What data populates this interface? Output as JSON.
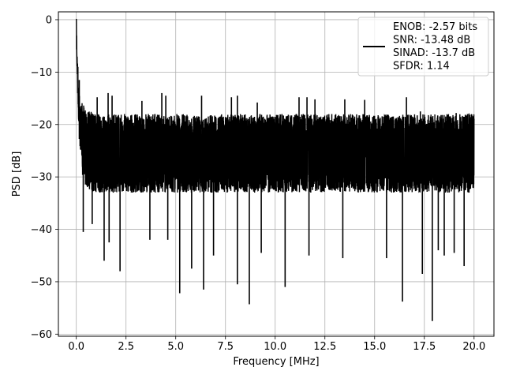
{
  "chart_data": {
    "type": "line",
    "title": "",
    "xlabel": "Frequency [MHz]",
    "ylabel": "PSD [dB]",
    "xlim": [
      -0.9,
      21.0
    ],
    "ylim": [
      -60.4,
      1.5
    ],
    "xticks": [
      0.0,
      2.5,
      5.0,
      7.5,
      10.0,
      12.5,
      15.0,
      17.5,
      20.0
    ],
    "xtick_labels": [
      "0.0",
      "2.5",
      "5.0",
      "7.5",
      "10.0",
      "12.5",
      "15.0",
      "17.5",
      "20.0"
    ],
    "yticks": [
      0,
      -10,
      -20,
      -30,
      -40,
      -50,
      -60
    ],
    "ytick_labels": [
      "0",
      "−10",
      "−20",
      "−30",
      "−40",
      "−50",
      "−60"
    ],
    "grid": true,
    "legend_position": "top-right",
    "series": [
      {
        "name": "ENOB: -2.57 bits\nSNR: -13.48 dB\nSINAD: -13.7 dB\nSFDR: 1.14",
        "color": "#000000",
        "envelope": {
          "x": [
            0.0,
            0.04,
            0.08,
            0.12,
            0.16,
            0.2,
            0.25,
            0.3,
            0.4,
            0.5,
            0.7,
            1.0,
            1.5,
            2.0,
            3.0,
            4.0,
            5.0,
            6.0,
            7.0,
            8.0,
            9.0,
            10.0,
            11.0,
            12.0,
            13.0,
            14.0,
            15.0,
            16.0,
            17.0,
            18.0,
            19.0,
            20.0
          ],
          "upper": [
            0.0,
            -6,
            -9,
            -12,
            -14,
            -15,
            -15.5,
            -16,
            -16.5,
            -17,
            -17.5,
            -18,
            -18,
            -18,
            -18,
            -18,
            -18,
            -18,
            -18,
            -18,
            -18,
            -18,
            -18,
            -18,
            -18,
            -18,
            -18,
            -18,
            -18,
            -18,
            -18,
            -18
          ],
          "lower": [
            -3,
            -10,
            -16,
            -20,
            -24,
            -26,
            -28,
            -30,
            -31,
            -32,
            -33,
            -33,
            -33,
            -33,
            -33,
            -33,
            -33,
            -33,
            -33,
            -33,
            -33,
            -33,
            -33,
            -33,
            -33,
            -33,
            -33,
            -33,
            -33,
            -33,
            -33,
            -33
          ]
        },
        "peaks": [
          {
            "x": 0.08,
            "y": -9.0
          },
          {
            "x": 0.15,
            "y": -11.5
          },
          {
            "x": 1.05,
            "y": -14.8
          },
          {
            "x": 1.6,
            "y": -14.0
          },
          {
            "x": 1.8,
            "y": -14.5
          },
          {
            "x": 3.3,
            "y": -15.5
          },
          {
            "x": 4.3,
            "y": -14.0
          },
          {
            "x": 4.5,
            "y": -14.5
          },
          {
            "x": 6.3,
            "y": -14.5
          },
          {
            "x": 7.8,
            "y": -14.8
          },
          {
            "x": 8.1,
            "y": -14.5
          },
          {
            "x": 9.1,
            "y": -15.8
          },
          {
            "x": 11.2,
            "y": -14.8
          },
          {
            "x": 11.6,
            "y": -14.8
          },
          {
            "x": 12.0,
            "y": -15.2
          },
          {
            "x": 13.5,
            "y": -15.2
          },
          {
            "x": 14.5,
            "y": -15.3
          },
          {
            "x": 16.6,
            "y": -14.8
          },
          {
            "x": 17.3,
            "y": -17.5
          },
          {
            "x": 19.1,
            "y": -17.8
          }
        ],
        "troughs": [
          {
            "x": 0.35,
            "y": -40.5
          },
          {
            "x": 0.8,
            "y": -39.0
          },
          {
            "x": 1.4,
            "y": -46.0
          },
          {
            "x": 1.65,
            "y": -42.5
          },
          {
            "x": 2.2,
            "y": -48.0
          },
          {
            "x": 3.7,
            "y": -42.0
          },
          {
            "x": 4.6,
            "y": -42.0
          },
          {
            "x": 5.2,
            "y": -52.2
          },
          {
            "x": 5.8,
            "y": -47.5
          },
          {
            "x": 6.4,
            "y": -51.5
          },
          {
            "x": 6.9,
            "y": -45.0
          },
          {
            "x": 8.1,
            "y": -50.5
          },
          {
            "x": 8.7,
            "y": -54.3
          },
          {
            "x": 9.3,
            "y": -44.5
          },
          {
            "x": 10.5,
            "y": -51.0
          },
          {
            "x": 11.7,
            "y": -45.0
          },
          {
            "x": 13.4,
            "y": -45.5
          },
          {
            "x": 15.6,
            "y": -45.5
          },
          {
            "x": 16.4,
            "y": -53.8
          },
          {
            "x": 17.4,
            "y": -48.5
          },
          {
            "x": 17.9,
            "y": -57.5
          },
          {
            "x": 18.2,
            "y": -44.0
          },
          {
            "x": 18.5,
            "y": -45.0
          },
          {
            "x": 19.0,
            "y": -44.5
          },
          {
            "x": 19.5,
            "y": -47.0
          }
        ]
      }
    ]
  }
}
